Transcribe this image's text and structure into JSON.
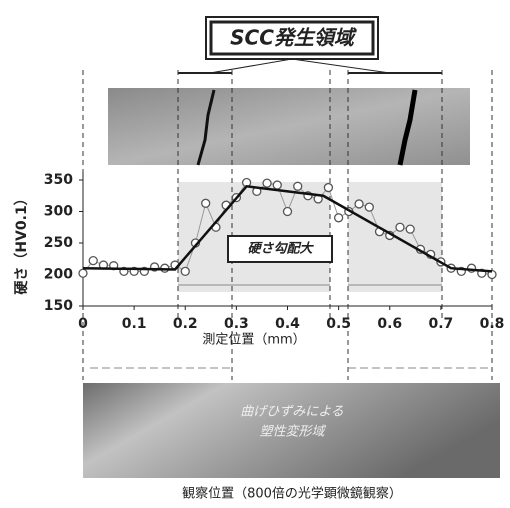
{
  "chart_data": {
    "type": "scatter",
    "title": "SCC発生領域",
    "xlabel": "測定位置（mm）",
    "ylabel": "硬さ（HV0.1）",
    "annotation": "硬さ勾配大",
    "image_text": [
      "曲げひずみによる",
      "塑性変形域"
    ],
    "caption": "観察位置（800倍の光学顕微鏡観察）",
    "xlim": [
      0,
      0.8
    ],
    "ylim": [
      150,
      350
    ],
    "xticks": [
      0,
      0.1,
      0.2,
      0.3,
      0.4,
      0.5,
      0.6,
      0.7,
      0.8
    ],
    "yticks": [
      150,
      200,
      250,
      300,
      350
    ],
    "series": [
      {
        "style": "markers",
        "color": "#555555",
        "x": [
          0,
          0.02,
          0.04,
          0.06,
          0.08,
          0.1,
          0.12,
          0.14,
          0.16,
          0.18,
          0.2,
          0.22,
          0.24,
          0.26,
          0.28,
          0.3,
          0.32,
          0.34,
          0.36,
          0.38,
          0.4,
          0.42,
          0.44,
          0.46,
          0.48,
          0.5,
          0.52,
          0.54,
          0.56,
          0.58,
          0.6,
          0.62,
          0.64,
          0.66,
          0.68,
          0.7,
          0.72,
          0.74,
          0.76,
          0.78,
          0.8
        ],
        "values": [
          202,
          222,
          215,
          214,
          205,
          205,
          205,
          212,
          210,
          215,
          205,
          250,
          313,
          275,
          310,
          322,
          346,
          332,
          345,
          342,
          300,
          340,
          325,
          320,
          338,
          290,
          300,
          312,
          307,
          268,
          262,
          275,
          272,
          240,
          232,
          220,
          210,
          205,
          210,
          202,
          200
        ]
      },
      {
        "style": "line",
        "color": "#111111",
        "x": [
          0,
          0.18,
          0.32,
          0.47,
          0.72,
          0.8
        ],
        "values": [
          210,
          208,
          340,
          325,
          210,
          205
        ]
      }
    ]
  }
}
